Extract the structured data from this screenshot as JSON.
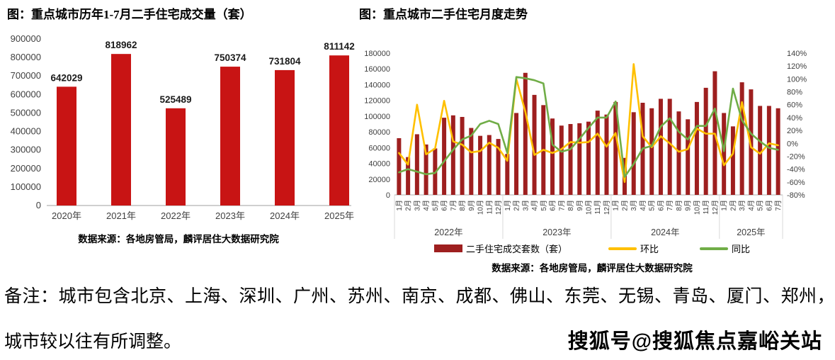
{
  "page": {
    "note_line1": "备注：城市包含北京、上海、深圳、广州、苏州、南京、成都、佛山、东莞、无锡、青岛、厦门、郑州，",
    "note_line2": "城市较以往有所调整。",
    "watermark": "搜狐号@搜狐焦点嘉峪关站"
  },
  "colors": {
    "bar_left": "#c81414",
    "bar_right": "#9e1f1f",
    "line_mom": "#ffc000",
    "line_yoy": "#70ad47",
    "axis": "#bfbfbf",
    "separator": "#d9d9d9",
    "tick_text": "#404040",
    "label_text": "#1a1a1a"
  },
  "chart_data": [
    {
      "type": "bar",
      "title": "图：重点城市历年1-7月二手住宅成交量（套）",
      "categories": [
        "2020年",
        "2021年",
        "2022年",
        "2023年",
        "2024年",
        "2025年"
      ],
      "values": [
        642029,
        818962,
        525489,
        750374,
        731804,
        811142
      ],
      "ylim": [
        0,
        900000
      ],
      "ytick_step": 100000,
      "grid": false,
      "data_labels": true,
      "source": "数据来源：各地房管局，麟评居住大数据研究院"
    },
    {
      "type": "bar+line",
      "title": "图：重点城市二手住宅月度走势",
      "categories": [
        "1月",
        "2月",
        "3月",
        "4月",
        "5月",
        "6月",
        "7月",
        "8月",
        "9月",
        "10月",
        "11月",
        "12月",
        "1月",
        "2月",
        "3月",
        "4月",
        "5月",
        "6月",
        "7月",
        "8月",
        "9月",
        "10月",
        "11月",
        "12月",
        "1月",
        "2月",
        "3月",
        "4月",
        "5月",
        "6月",
        "7月",
        "8月",
        "9月",
        "10月",
        "11月",
        "12月",
        "1月",
        "2月",
        "3月",
        "4月",
        "5月",
        "6月",
        "7月"
      ],
      "year_groups": [
        {
          "year": "2022年",
          "months": 12
        },
        {
          "year": "2023年",
          "months": 12
        },
        {
          "year": "2024年",
          "months": 12
        },
        {
          "year": "2025年",
          "months": 7
        }
      ],
      "left_axis": {
        "min": 0,
        "max": 180000,
        "step": 20000
      },
      "right_axis": {
        "min": -80,
        "max": 140,
        "step": 20,
        "unit": "%"
      },
      "legend_position": "bottom",
      "series": [
        {
          "name": "二手住宅成交套数（套）",
          "type": "bar",
          "axis": "left",
          "color": "#9e1f1f",
          "values": [
            72000,
            48000,
            77000,
            64000,
            59000,
            98000,
            101000,
            99000,
            85000,
            75000,
            76000,
            71000,
            52000,
            104000,
            155000,
            127000,
            114000,
            97000,
            88000,
            90000,
            91000,
            93000,
            107000,
            102000,
            118000,
            47000,
            105000,
            117000,
            110000,
            122000,
            122000,
            106000,
            96000,
            118000,
            136000,
            157000,
            104000,
            87000,
            143000,
            134000,
            113000,
            113000,
            110000
          ]
        },
        {
          "name": "环比",
          "type": "line",
          "axis": "right",
          "color": "#ffc000",
          "values": [
            -15,
            -33,
            60,
            -17,
            -8,
            66,
            3,
            -2,
            -14,
            -12,
            1,
            -7,
            -27,
            100,
            49,
            -18,
            -10,
            -15,
            -9,
            2,
            1,
            2,
            15,
            -5,
            16,
            -60,
            123,
            11,
            -6,
            11,
            0,
            -13,
            -9,
            23,
            15,
            15,
            -34,
            -16,
            64,
            -6,
            -16,
            0,
            -3
          ]
        },
        {
          "name": "同比",
          "type": "line",
          "axis": "right",
          "color": "#70ad47",
          "values": [
            -45,
            -40,
            -44,
            -48,
            -46,
            -28,
            -10,
            6,
            12,
            30,
            35,
            30,
            -15,
            103,
            101,
            98,
            93,
            -2,
            -13,
            -9,
            7,
            24,
            40,
            40,
            65,
            -52,
            -32,
            -8,
            -4,
            26,
            39,
            18,
            6,
            27,
            27,
            54,
            -12,
            85,
            36,
            15,
            3,
            -7,
            -10
          ]
        }
      ],
      "source": "数据来源：各地房管局，麟评居住大数据研究院"
    }
  ]
}
